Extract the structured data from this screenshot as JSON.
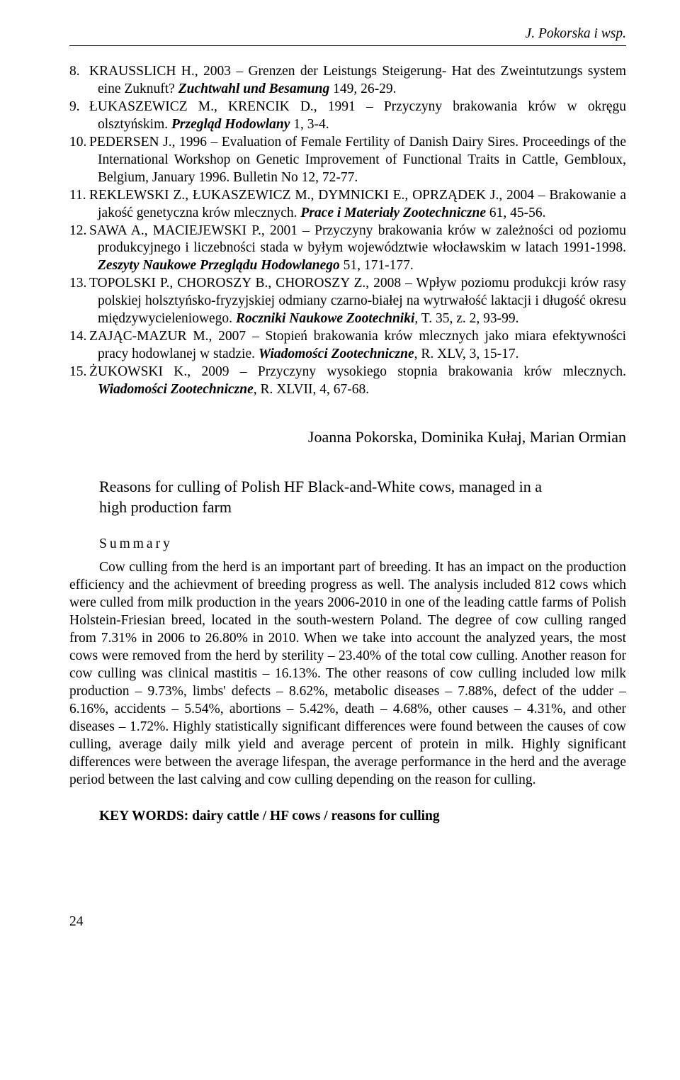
{
  "running_head": "J. Pokorska i wsp.",
  "refs": [
    {
      "pre": "KRAUSSLICH H., 2003 – Grenzen der Leistungs Steigerung- Hat des Zweintutzungs system eine Zuknuft? ",
      "em": "Zuchtwahl und Besamung",
      "post": " 149, 26-29."
    },
    {
      "pre": "ŁUKASZEWICZ M., KRENCIK D., 1991 – Przyczyny brakowania krów w okręgu olsztyńskim. ",
      "em": "Przegląd Hodowlany",
      "post": " 1, 3-4."
    },
    {
      "pre": "PEDERSEN J., 1996 – Evaluation of Female Fertility of Danish Dairy Sires. Proceedings of the International Workshop on Genetic Improvement of Functional Traits in Cattle, Gembloux, Belgium, January 1996. Bulletin No 12, 72-77.",
      "em": "",
      "post": ""
    },
    {
      "pre": "REKLEWSKI Z., ŁUKASZEWICZ M., DYMNICKI E., OPRZĄDEK J., 2004 – Brakowanie a jakość genetyczna krów mlecznych. ",
      "em": "Prace i Materiały Zootechniczne",
      "post": " 61, 45-56."
    },
    {
      "pre": "SAWA A., MACIEJEWSKI P., 2001 – Przyczyny brakowania krów w zależności od poziomu produkcyjnego i liczebności stada w byłym województwie włocławskim w latach 1991-1998. ",
      "em": "Zeszyty Naukowe Przeglądu Hodowlanego",
      "post": " 51, 171-177."
    },
    {
      "pre": "TOPOLSKI P., CHOROSZY B., CHOROSZY Z., 2008 – Wpływ poziomu produkcji krów rasy polskiej holsztyńsko-fryzyjskiej odmiany czarno-białej na wytrwałość laktacji i długość okresu międzywycieleniowego. ",
      "em": "Roczniki Naukowe Zootechniki",
      "post": ", T. 35, z. 2, 93-99."
    },
    {
      "pre": "ZAJĄC-MAZUR M., 2007 – Stopień brakowania krów mlecznych jako miara efektywności pracy hodowlanej w stadzie. ",
      "em": "Wiadomości Zootechniczne",
      "post": ", R. XLV, 3, 15-17."
    },
    {
      "pre": "ŻUKOWSKI K., 2009 – Przyczyny wysokiego stopnia brakowania krów mlecznych. ",
      "em": "Wiadomości Zootechniczne",
      "post": ", R. XLVII, 4, 67-68."
    }
  ],
  "authors_en": "Joanna Pokorska, Dominika Kułaj, Marian Ormian",
  "title_en": "Reasons for culling of Polish HF Black-and-White cows, managed in a high production farm",
  "summary_label": "Summary",
  "summary": "Cow culling from the herd is an important part of breeding. It has an impact on the production efficiency and the achievment of breeding progress as well. The analysis included 812 cows which were culled from milk production in the years 2006-2010 in one of the leading cattle farms of Polish Holstein-Friesian breed, located in the south-western Poland. The degree of cow culling ranged from 7.31% in 2006 to 26.80% in 2010. When we take into account the analyzed years, the most cows were removed from the herd by sterility – 23.40% of the total cow culling. Another reason for cow culling was clinical mastitis – 16.13%. The other reasons of cow culling included low milk production – 9.73%, limbs' defects – 8.62%, metabolic diseases – 7.88%, defect of the udder – 6.16%, accidents – 5.54%, abortions – 5.42%, death – 4.68%, other causes – 4.31%, and other diseases – 1.72%. Highly statistically significant differences were found between the causes of cow culling, average daily milk yield and average percent of protein in milk. Highly significant differences were between the average lifespan, the average performance in the herd and the average period between the last calving and cow culling depending on the reason for culling.",
  "keywords": "KEY WORDS: dairy cattle / HF cows / reasons for culling",
  "page_number": "24",
  "colors": {
    "text": "#000000",
    "bg": "#ffffff",
    "rule": "#000000"
  },
  "typography": {
    "body_pt": 19.5,
    "title_pt": 22,
    "font": "Times New Roman",
    "line_height": 1.28
  }
}
